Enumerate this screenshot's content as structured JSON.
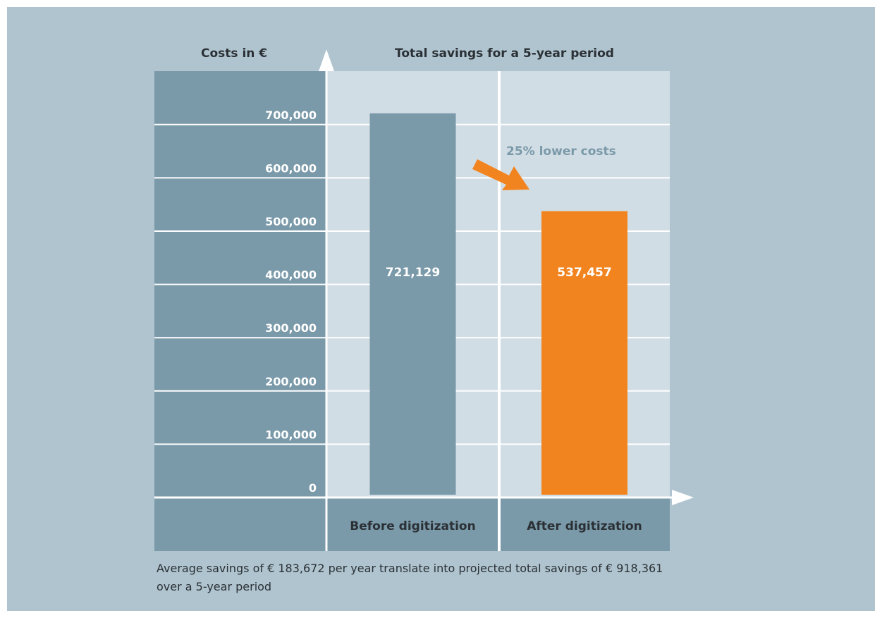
{
  "chart_data": {
    "type": "bar",
    "title": "Total savings for a 5-year period",
    "ylabel": "Costs in €",
    "ylim": [
      0,
      800000
    ],
    "yticks": [
      0,
      100000,
      200000,
      300000,
      400000,
      500000,
      600000,
      700000
    ],
    "ytick_labels": [
      "0",
      "100,000",
      "200,000",
      "300,000",
      "400,000",
      "500,000",
      "600,000",
      "700,000"
    ],
    "categories": [
      "Before digitization",
      "After digitization"
    ],
    "values": [
      721129,
      537457
    ],
    "value_labels": [
      "721,129",
      "537,457"
    ],
    "bar_colors": [
      "#7a99a9",
      "#f28420"
    ],
    "annotation": "25% lower costs",
    "grid": true
  },
  "footnote": "Average savings of € 183,672 per year translate into projected total savings of € 918,361 over a 5-year period",
  "colors": {
    "background": "#afc4cf",
    "axis_panel": "#7a99a9",
    "plot_area": "#d1dde4",
    "accent": "#f28420",
    "annotation_text": "#7a99a9"
  }
}
